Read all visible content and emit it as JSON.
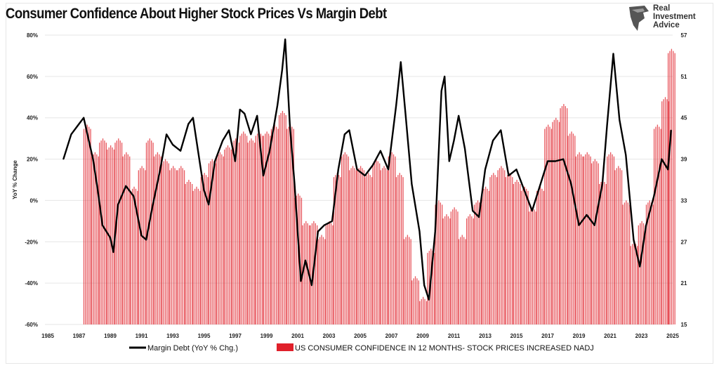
{
  "logo": {
    "lines": [
      "Real",
      "Investment",
      "Advice"
    ]
  },
  "chart_data": {
    "type": "bar+line",
    "title": "Consumer Confidence About Higher Stock Prices Vs Margin Debt",
    "ylabel": "YoY % Change",
    "xlabel": "",
    "xlim": [
      1985,
      2025
    ],
    "x_ticks": [
      "1985",
      "1987",
      "1989",
      "1991",
      "1993",
      "1995",
      "1997",
      "1999",
      "2001",
      "2003",
      "2005",
      "2007",
      "2009",
      "2011",
      "2013",
      "2015",
      "2017",
      "2019",
      "2021",
      "2023",
      "2025"
    ],
    "ylim_left": [
      -60,
      80
    ],
    "y_ticks_left": [
      "80%",
      "60%",
      "40%",
      "20%",
      "0%",
      "-20%",
      "-40%",
      "-60%"
    ],
    "ylim_right": [
      15,
      57
    ],
    "y_ticks_right": [
      "57",
      "51",
      "45",
      "39",
      "33",
      "27",
      "21",
      "15"
    ],
    "grid": "horizontal",
    "legend_position": "bottom",
    "colors": {
      "line": "#000000",
      "bars": "#e0202a"
    },
    "series": [
      {
        "name": "Margin Debt (YoY % Chg.)",
        "type": "line",
        "axis": "left",
        "x": [
          1986.0,
          1986.5,
          1987.0,
          1987.3,
          1987.6,
          1987.9,
          1988.2,
          1988.5,
          1989.0,
          1989.2,
          1989.5,
          1990.0,
          1990.5,
          1991.0,
          1991.3,
          1991.7,
          1992.2,
          1992.6,
          1993.0,
          1993.5,
          1994.0,
          1994.3,
          1994.6,
          1995.0,
          1995.3,
          1995.7,
          1996.2,
          1996.6,
          1997.0,
          1997.3,
          1997.6,
          1998.0,
          1998.4,
          1998.8,
          1999.2,
          1999.7,
          2000.0,
          2000.2,
          2000.5,
          2000.8,
          2001.2,
          2001.5,
          2001.9,
          2002.3,
          2002.7,
          2003.2,
          2003.6,
          2004.0,
          2004.3,
          2004.8,
          2005.3,
          2005.8,
          2006.3,
          2006.8,
          2007.3,
          2007.6,
          2007.9,
          2008.3,
          2008.8,
          2009.1,
          2009.4,
          2009.8,
          2010.2,
          2010.4,
          2010.7,
          2011.0,
          2011.3,
          2011.7,
          2012.2,
          2012.6,
          2013.0,
          2013.5,
          2014.0,
          2014.5,
          2015.0,
          2015.5,
          2016.0,
          2016.5,
          2017.0,
          2017.5,
          2018.0,
          2018.5,
          2019.0,
          2019.5,
          2020.0,
          2020.5,
          2020.8,
          2021.2,
          2021.6,
          2022.0,
          2022.5,
          2022.9,
          2023.3,
          2023.8,
          2024.3,
          2024.7,
          2024.9
        ],
        "values": [
          20,
          32,
          37,
          40,
          30,
          20,
          5,
          -12,
          -18,
          -25,
          -2,
          7,
          2,
          -17,
          -19,
          -3,
          15,
          32,
          27,
          24,
          37,
          40,
          25,
          5,
          -2,
          19,
          29,
          34,
          19,
          44,
          42,
          32,
          41,
          12,
          24,
          46,
          63,
          78,
          36,
          8,
          -39,
          -29,
          -41,
          -15,
          -12,
          -10,
          15,
          32,
          34,
          15,
          12,
          17,
          24,
          15,
          46,
          67,
          42,
          8,
          -15,
          -41,
          -48,
          -15,
          53,
          60,
          19,
          29,
          41,
          25,
          -5,
          -8,
          15,
          29,
          34,
          12,
          15,
          5,
          -5,
          7,
          19,
          19,
          20,
          8,
          -12,
          -7,
          -12,
          8,
          36,
          71,
          39,
          22,
          -19,
          -32,
          -12,
          2,
          20,
          15,
          34
        ]
      },
      {
        "name": "US CONSUMER CONFIDENCE IN 12 MONTHS- STOCK PRICES INCREASED NADJ",
        "type": "bar",
        "axis": "right",
        "x": [
          1987.5,
          1988.0,
          1988.5,
          1989.0,
          1989.5,
          1990.0,
          1990.5,
          1991.0,
          1991.5,
          1992.0,
          1992.5,
          1993.0,
          1993.5,
          1994.0,
          1994.5,
          1995.0,
          1995.5,
          1996.0,
          1996.5,
          1997.0,
          1997.5,
          1998.0,
          1998.5,
          1999.0,
          1999.5,
          2000.0,
          2000.5,
          2001.0,
          2001.5,
          2002.0,
          2002.5,
          2003.0,
          2003.5,
          2004.0,
          2004.5,
          2005.0,
          2005.5,
          2006.0,
          2006.5,
          2007.0,
          2007.5,
          2008.0,
          2008.5,
          2009.0,
          2009.5,
          2010.0,
          2010.5,
          2011.0,
          2011.5,
          2012.0,
          2012.5,
          2013.0,
          2013.5,
          2014.0,
          2014.5,
          2015.0,
          2015.5,
          2016.0,
          2016.5,
          2017.0,
          2017.5,
          2018.0,
          2018.5,
          2019.0,
          2019.5,
          2020.0,
          2020.5,
          2021.0,
          2021.5,
          2022.0,
          2022.5,
          2023.0,
          2023.5,
          2024.0,
          2024.5,
          2024.9
        ],
        "values": [
          44,
          40,
          42,
          41,
          42,
          40,
          35,
          38,
          42,
          40,
          39,
          38,
          38,
          36,
          35,
          37,
          39,
          40,
          41,
          42,
          43,
          42,
          43,
          43,
          44,
          46,
          44,
          34,
          30,
          30,
          28,
          30,
          37,
          40,
          38,
          38,
          37,
          39,
          38,
          40,
          37,
          28,
          22,
          19,
          26,
          33,
          31,
          32,
          28,
          31,
          33,
          35,
          37,
          38,
          37,
          36,
          35,
          32,
          35,
          44,
          45,
          47,
          43,
          40,
          40,
          39,
          36,
          40,
          38,
          33,
          27,
          30,
          33,
          44,
          48,
          55
        ]
      }
    ]
  }
}
